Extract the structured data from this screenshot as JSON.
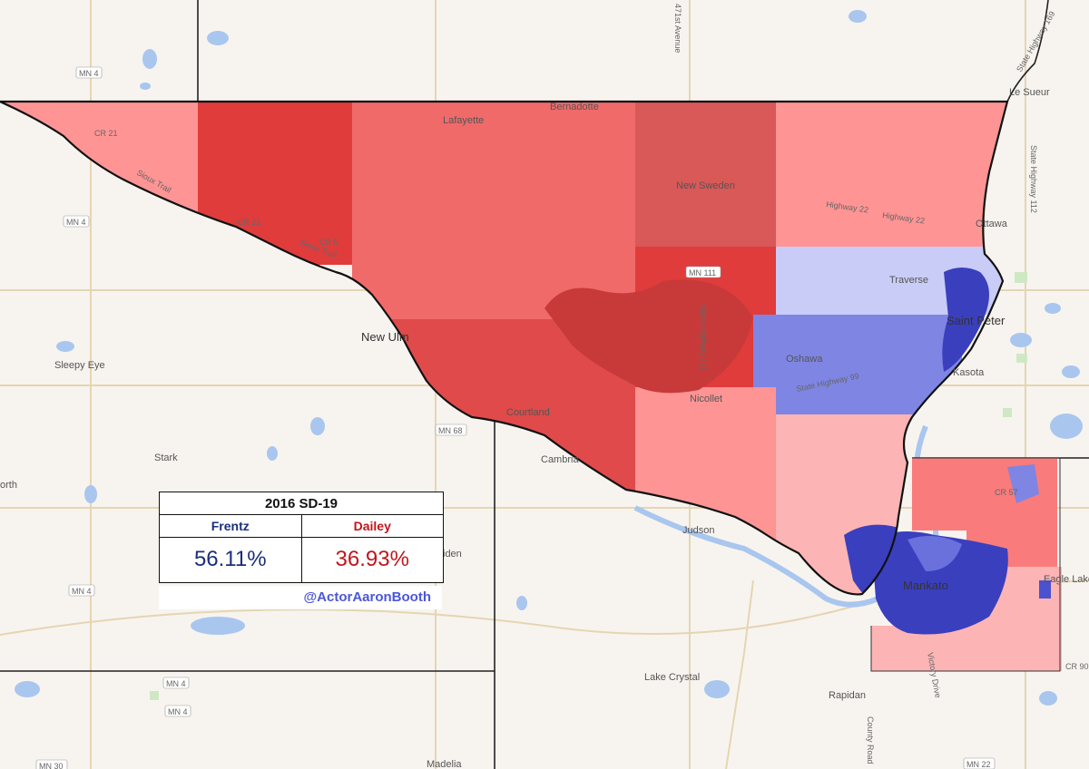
{
  "results": {
    "title": "2016 SD-19",
    "candidates": [
      {
        "name": "Frentz",
        "percent": "56.11%",
        "color": "#1b2f7a"
      },
      {
        "name": "Dailey",
        "percent": "36.93%",
        "color": "#c0161c"
      }
    ],
    "credit": "@ActorAaronBooth"
  },
  "map": {
    "colors": {
      "background": "#f7f4ef",
      "strong_rep": "#e03c3c",
      "rep": "#f06a6a",
      "lean_rep": "#ff9494",
      "light_rep": "#fdb4b4",
      "dark_rep": "#d95858",
      "light_dem": "#c8ccf7",
      "lean_dem": "#7f85e3",
      "dem": "#4b52cf",
      "strong_dem": "#3a3fbe"
    },
    "towns": [
      "New Ulm",
      "Saint Peter",
      "Mankato",
      "Sleepy Eye",
      "Lafayette",
      "Bernadotte",
      "New Sweden",
      "Traverse",
      "Oshawa",
      "Kasota",
      "Ottawa",
      "Le Sueur",
      "Nicollet",
      "Courtland",
      "Cambria",
      "Judson",
      "Stark",
      "Lake Crystal",
      "Rapidan",
      "Madelia",
      "Eagle Lake",
      "orth",
      "iden"
    ],
    "roads": [
      "MN 4",
      "MN 4",
      "MN 4",
      "MN 4",
      "MN 4",
      "MN 30",
      "MN 68",
      "MN 111",
      "MN 22",
      "CR 21",
      "CR 21",
      "CR 5",
      "CR 57",
      "CR 90",
      "Sioux Trail",
      "Sioux Trail",
      "Highway 22",
      "Highway 22",
      "State Highway 111",
      "State Highway 99",
      "State Highway 112",
      "State Highway 169",
      "471st Avenue",
      "County Road",
      "Victory Drive"
    ]
  }
}
